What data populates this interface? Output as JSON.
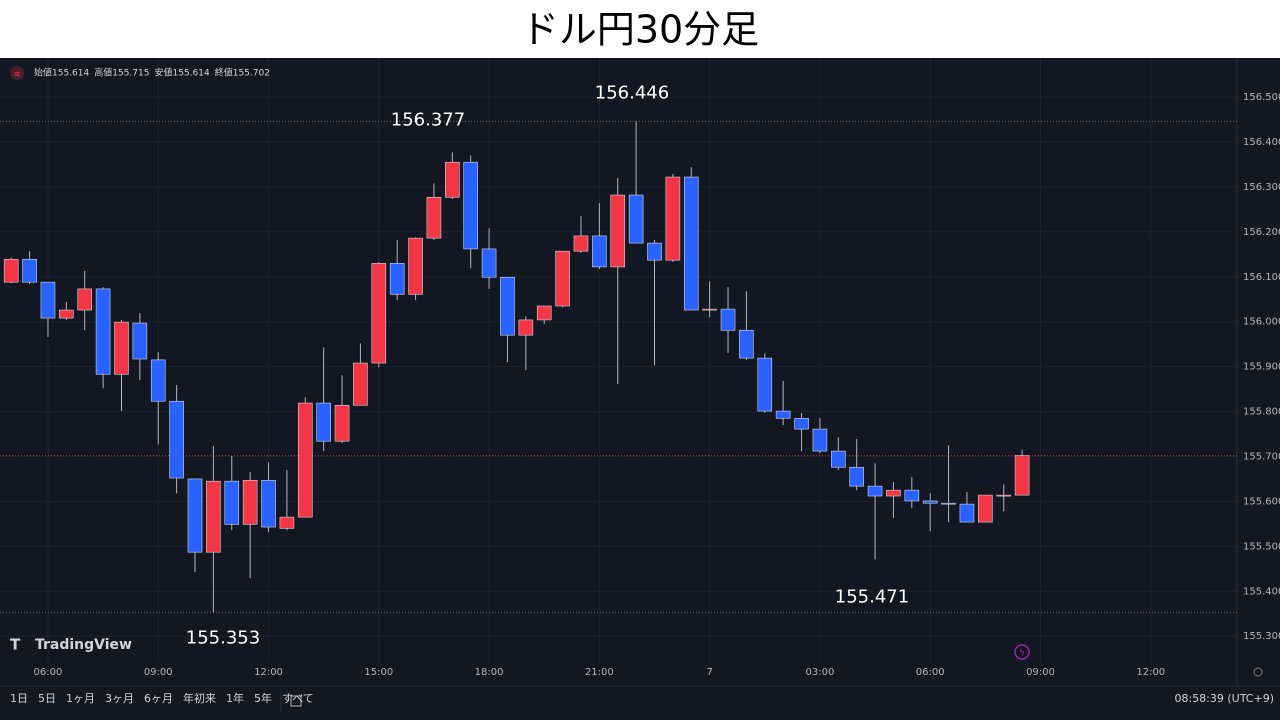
{
  "title": "ドル円30分足",
  "chart_data": {
    "type": "candlestick",
    "open": [
      156.088,
      156.139,
      156.088,
      156.008,
      156.026,
      156.073,
      155.883,
      155.997,
      155.915,
      155.823,
      155.65,
      155.487,
      155.645,
      155.549,
      155.647,
      155.54,
      155.565,
      155.819,
      155.734,
      155.814,
      155.908,
      156.13,
      156.061,
      156.186,
      156.277,
      156.355,
      156.162,
      156.099,
      155.97,
      156.004,
      156.035,
      156.157,
      156.191,
      156.122,
      156.282,
      156.175,
      156.137,
      156.322,
      156.026,
      156.028,
      155.981,
      155.919,
      155.801,
      155.785,
      155.761,
      155.712,
      155.676,
      155.634,
      155.612,
      155.625,
      155.601,
      155.596,
      155.594,
      155.554,
      155.612,
      155.614
    ],
    "high": [
      156.143,
      156.157,
      156.088,
      156.044,
      156.113,
      156.077,
      156.004,
      156.019,
      155.932,
      155.859,
      155.65,
      155.723,
      155.701,
      155.665,
      155.687,
      155.67,
      155.832,
      155.943,
      155.881,
      155.952,
      156.133,
      156.182,
      156.188,
      156.308,
      156.377,
      156.37,
      156.208,
      156.099,
      156.012,
      156.035,
      156.157,
      156.235,
      156.264,
      156.32,
      156.446,
      156.182,
      156.329,
      156.344,
      156.09,
      156.077,
      156.068,
      155.93,
      155.868,
      155.797,
      155.785,
      155.743,
      155.739,
      155.685,
      155.643,
      155.654,
      155.618,
      155.725,
      155.621,
      155.614,
      155.638,
      155.715
    ],
    "low": [
      156.086,
      156.084,
      155.966,
      156.004,
      155.981,
      155.852,
      155.801,
      155.87,
      155.727,
      155.618,
      155.443,
      155.353,
      155.536,
      155.429,
      155.532,
      155.536,
      155.565,
      155.712,
      155.73,
      155.814,
      155.899,
      156.048,
      156.048,
      156.182,
      156.273,
      156.119,
      156.073,
      155.91,
      155.892,
      155.995,
      156.032,
      156.153,
      156.117,
      155.861,
      156.175,
      155.903,
      156.133,
      156.026,
      156.01,
      155.93,
      155.915,
      155.797,
      155.77,
      155.712,
      155.707,
      155.67,
      155.625,
      155.471,
      155.563,
      155.585,
      155.534,
      155.554,
      155.554,
      155.554,
      155.578,
      155.614
    ],
    "close": [
      156.139,
      156.088,
      156.008,
      156.026,
      156.073,
      155.883,
      155.999,
      155.917,
      155.823,
      155.652,
      155.487,
      155.645,
      155.549,
      155.647,
      155.543,
      155.565,
      155.819,
      155.734,
      155.814,
      155.908,
      156.13,
      156.061,
      156.186,
      156.277,
      156.355,
      156.162,
      156.099,
      155.97,
      156.004,
      156.035,
      156.157,
      156.191,
      156.122,
      156.282,
      156.175,
      156.137,
      156.322,
      156.026,
      156.028,
      155.981,
      155.919,
      155.801,
      155.785,
      155.761,
      155.712,
      155.676,
      155.634,
      155.612,
      155.625,
      155.601,
      155.596,
      155.594,
      155.554,
      155.614,
      155.614,
      155.702
    ],
    "up_color": "#f23645",
    "down_color": "#2962ff",
    "ylim": [
      155.247,
      156.587
    ],
    "yticks": [
      {
        "value": 155.3,
        "label": "155.300"
      },
      {
        "value": 155.4,
        "label": "155.400"
      },
      {
        "value": 155.5,
        "label": "155.500"
      },
      {
        "value": 155.6,
        "label": "155.600"
      },
      {
        "value": 155.7,
        "label": "155.700"
      },
      {
        "value": 155.8,
        "label": "155.800"
      },
      {
        "value": 155.9,
        "label": "155.900"
      },
      {
        "value": 156.0,
        "label": "156.000"
      },
      {
        "value": 156.1,
        "label": "156.100"
      },
      {
        "value": 156.2,
        "label": "156.200"
      },
      {
        "value": 156.3,
        "label": "156.300"
      },
      {
        "value": 156.4,
        "label": "156.400"
      },
      {
        "value": 156.5,
        "label": "156.500"
      }
    ],
    "xtick_labels": [
      "06:00",
      "09:00",
      "12:00",
      "15:00",
      "18:00",
      "21:00",
      "7",
      "03:00",
      "06:00",
      "09:00",
      "12:00"
    ],
    "grid": true,
    "legend_labels": [
      "始値",
      "高値",
      "安値",
      "終値"
    ]
  },
  "logo": "TradingView",
  "range_buttons": [
    "1日",
    "5日",
    "1ヶ月",
    "3ヶ月",
    "6ヶ月",
    "年初来",
    "1年",
    "5年",
    "すべて"
  ],
  "clock": "08:58:39 (UTC+9)"
}
